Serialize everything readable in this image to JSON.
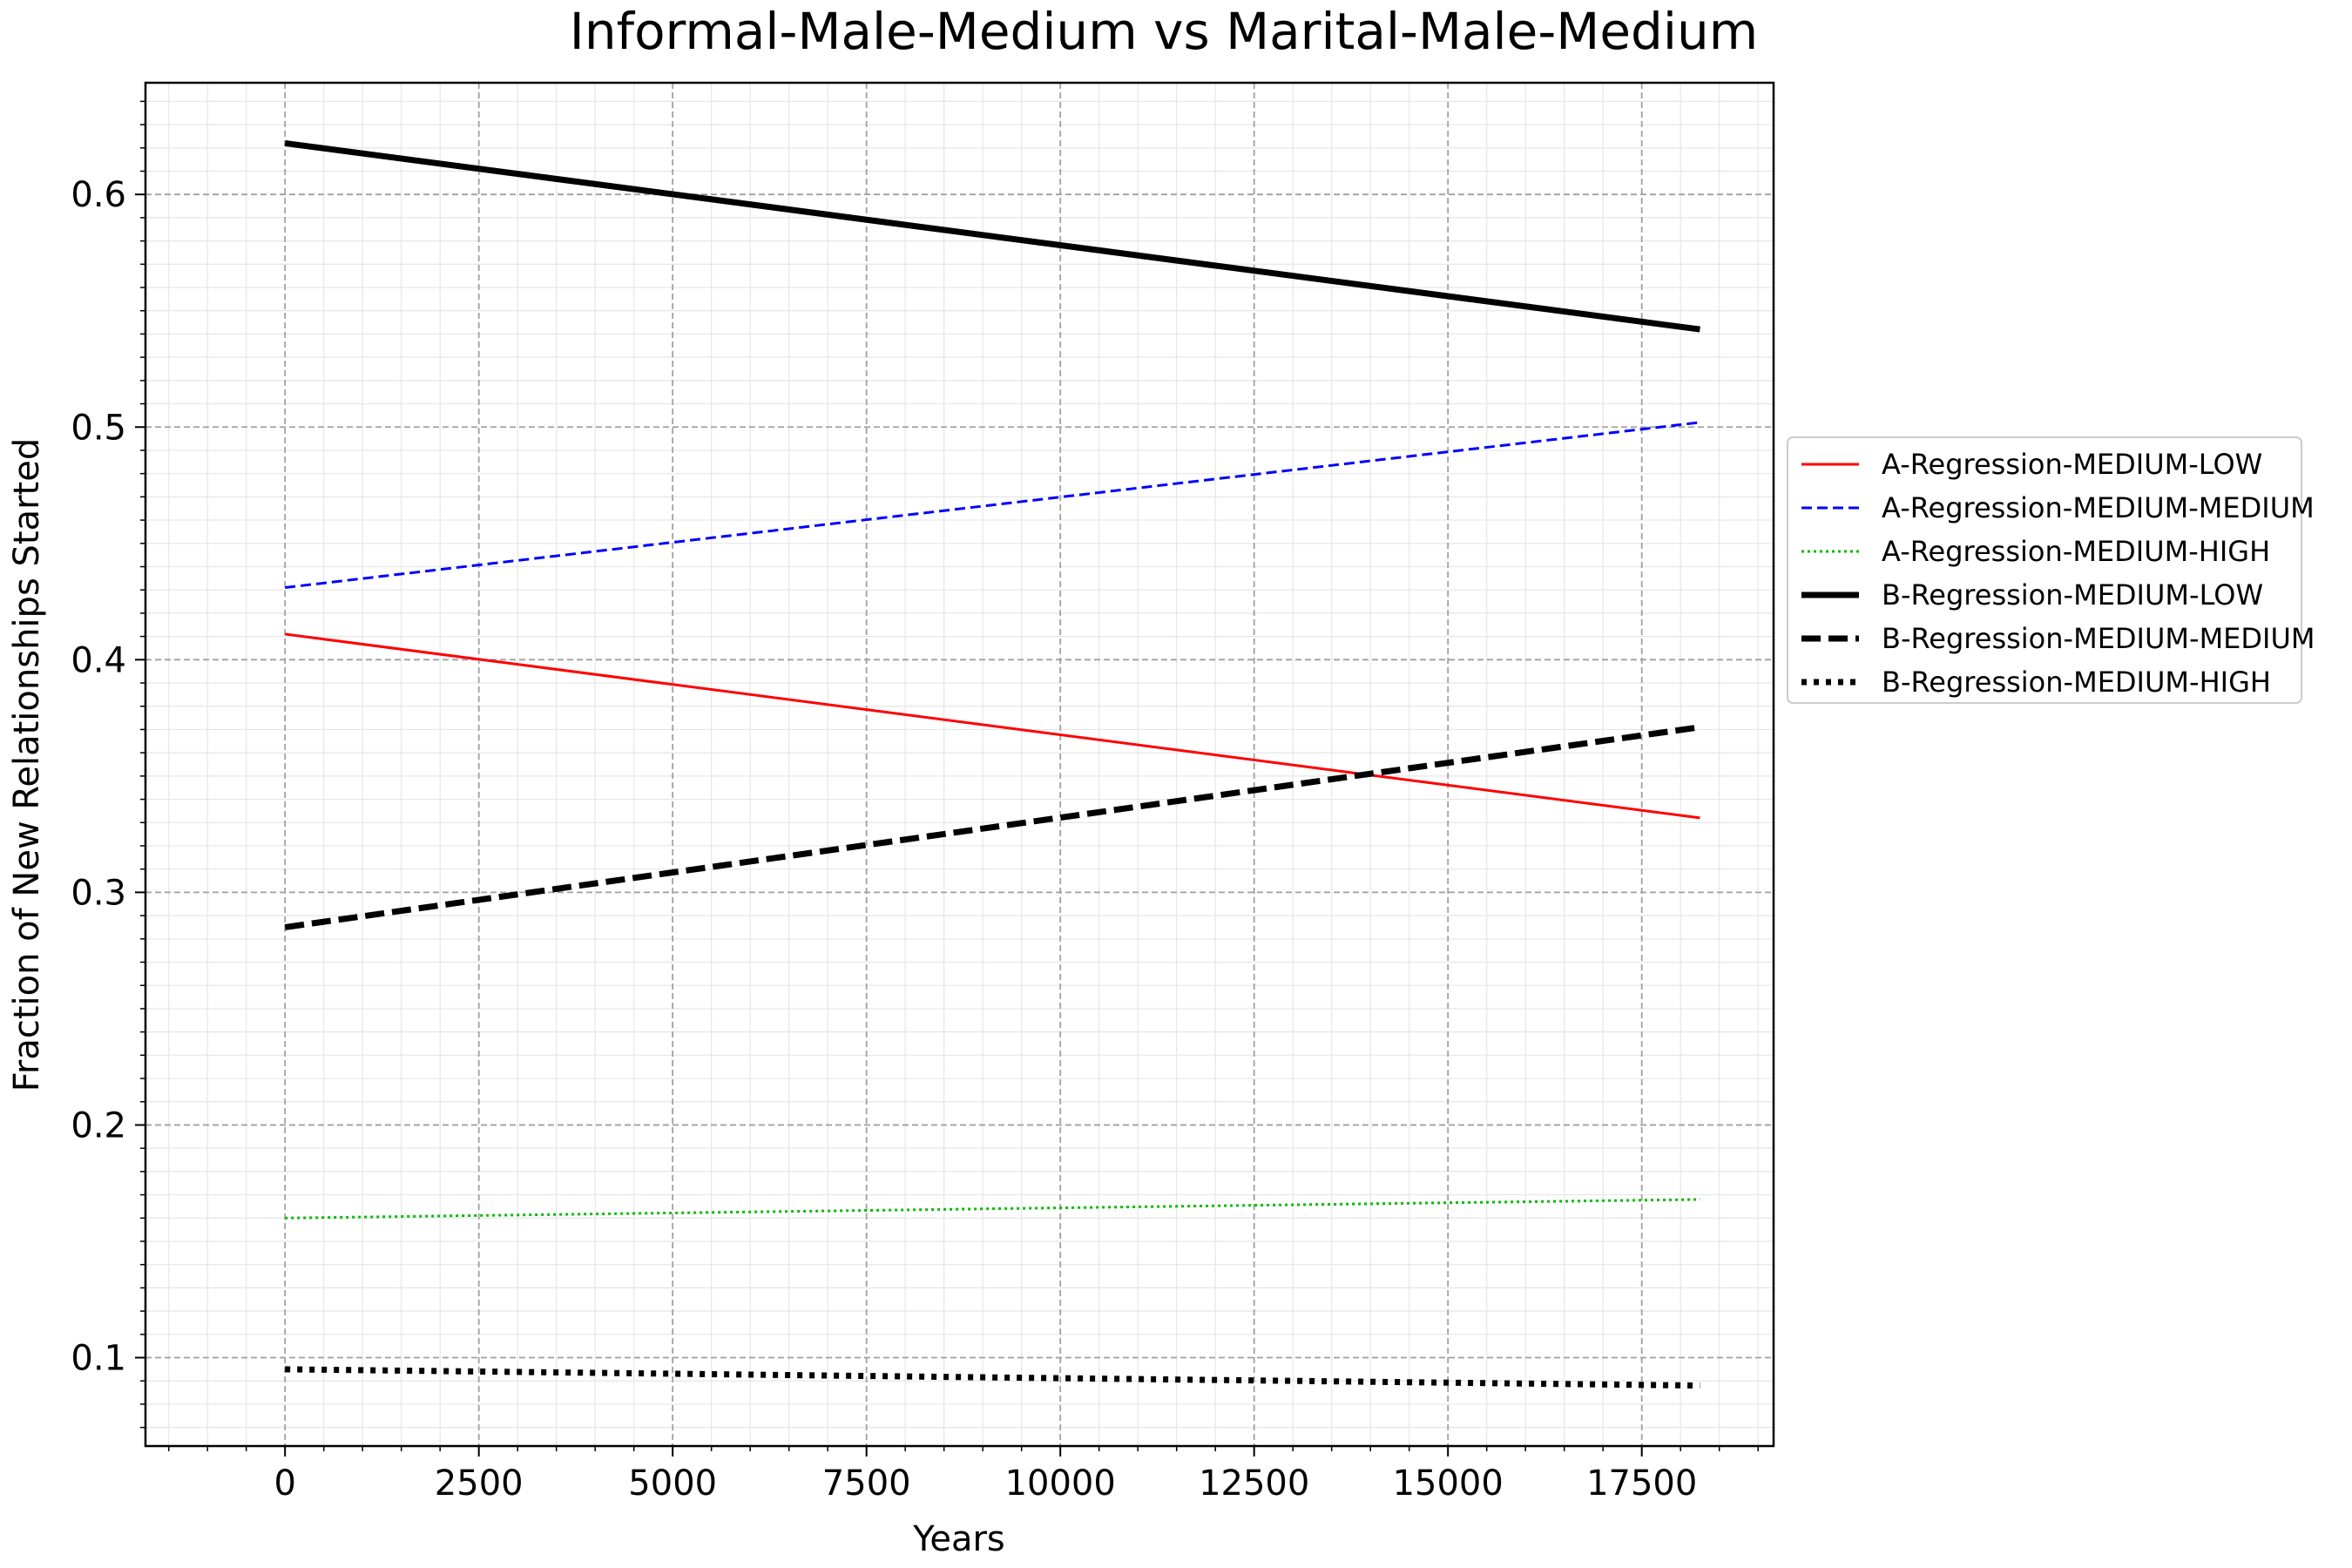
{
  "chart_data": {
    "type": "line",
    "title": "Informal-Male-Medium vs Marital-Male-Medium",
    "xlabel": "Years",
    "ylabel": "Fraction of New Relationships Started",
    "xlim": [
      -1800,
      19200
    ],
    "ylim": [
      0.062,
      0.648
    ],
    "x_ticks": [
      0,
      2500,
      5000,
      7500,
      10000,
      12500,
      15000,
      17500
    ],
    "y_ticks": [
      0.1,
      0.2,
      0.3,
      0.4,
      0.5,
      0.6
    ],
    "grid": true,
    "legend_position": "right, outside plot",
    "series": [
      {
        "name": "A-Regression-MEDIUM-LOW",
        "color": "#ff0000",
        "style": "solid",
        "weight": "thin",
        "points": [
          [
            0,
            0.411
          ],
          [
            18250,
            0.332
          ]
        ]
      },
      {
        "name": "A-Regression-MEDIUM-MEDIUM",
        "color": "#0000ff",
        "style": "dashed",
        "weight": "thin",
        "points": [
          [
            0,
            0.431
          ],
          [
            18250,
            0.502
          ]
        ]
      },
      {
        "name": "A-Regression-MEDIUM-HIGH",
        "color": "#00bb00",
        "style": "dotted",
        "weight": "thin",
        "points": [
          [
            0,
            0.16
          ],
          [
            18250,
            0.168
          ]
        ]
      },
      {
        "name": "B-Regression-MEDIUM-LOW",
        "color": "#000000",
        "style": "solid",
        "weight": "thick",
        "points": [
          [
            0,
            0.622
          ],
          [
            18250,
            0.542
          ]
        ]
      },
      {
        "name": "B-Regression-MEDIUM-MEDIUM",
        "color": "#000000",
        "style": "dashed",
        "weight": "thick",
        "points": [
          [
            0,
            0.285
          ],
          [
            18250,
            0.371
          ]
        ]
      },
      {
        "name": "B-Regression-MEDIUM-HIGH",
        "color": "#000000",
        "style": "dotted",
        "weight": "thick",
        "points": [
          [
            0,
            0.095
          ],
          [
            18250,
            0.088
          ]
        ]
      }
    ]
  }
}
